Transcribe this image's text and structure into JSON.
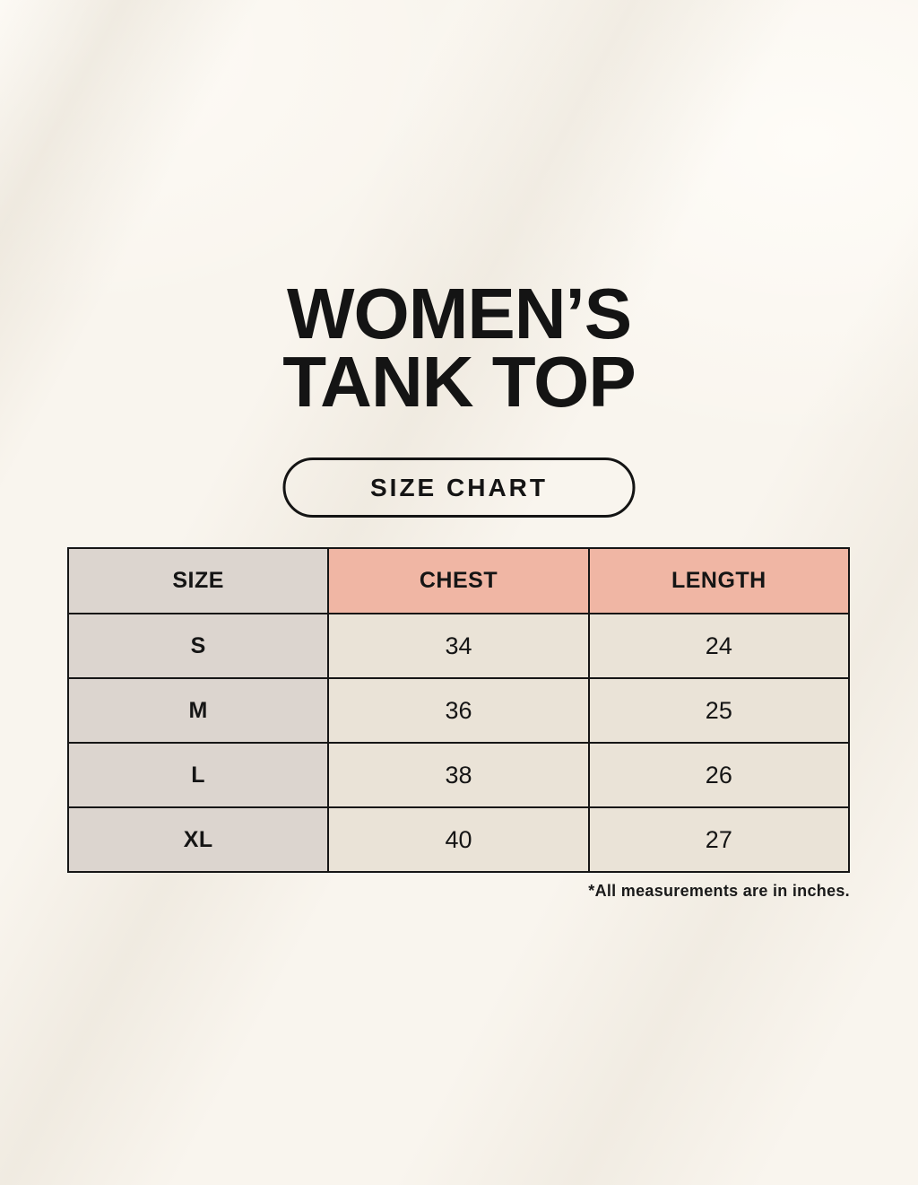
{
  "header": {
    "title_line1": "WOMEN’S",
    "title_line2": "TANK TOP",
    "badge_label": "SIZE CHART"
  },
  "size_chart": {
    "columns": [
      "SIZE",
      "CHEST",
      "LENGTH"
    ],
    "rows": [
      [
        "S",
        "34",
        "24"
      ],
      [
        "M",
        "36",
        "25"
      ],
      [
        "L",
        "38",
        "26"
      ],
      [
        "XL",
        "40",
        "27"
      ]
    ],
    "footnote": "*All measurements are in inches."
  },
  "chart_data": {
    "type": "table",
    "title": "WOMEN’S TANK TOP — SIZE CHART",
    "columns": [
      "SIZE",
      "CHEST",
      "LENGTH"
    ],
    "rows": [
      {
        "size": "S",
        "chest": 34,
        "length": 24
      },
      {
        "size": "M",
        "chest": 36,
        "length": 25
      },
      {
        "size": "L",
        "chest": 38,
        "length": 26
      },
      {
        "size": "XL",
        "chest": 40,
        "length": 27
      }
    ],
    "units": "inches"
  },
  "colors": {
    "background": "#f9f5ee",
    "gray_cell": "#dcd5cf",
    "pink_header": "#f0b6a4",
    "cream_cell": "#eae3d7",
    "ink": "#141414"
  }
}
